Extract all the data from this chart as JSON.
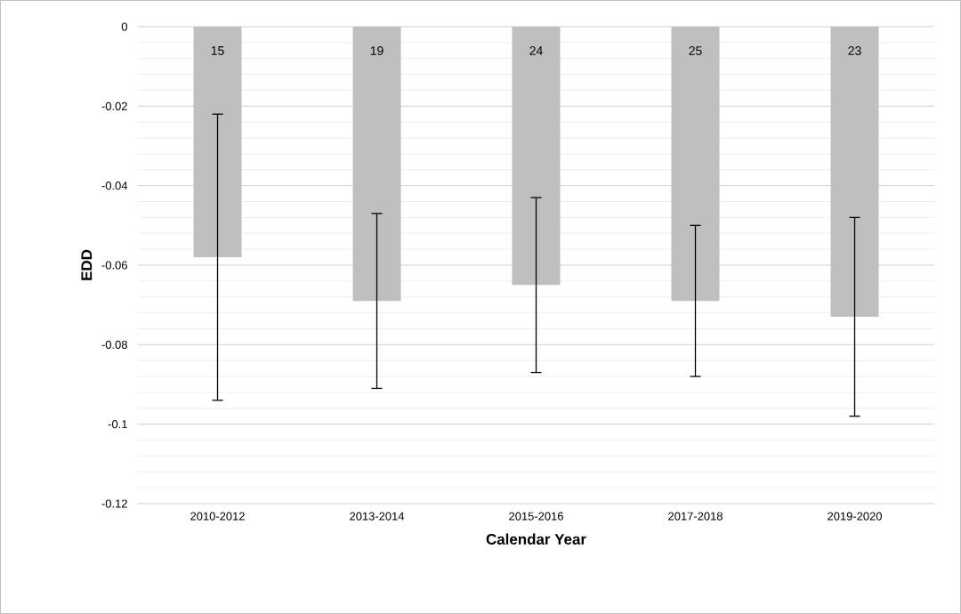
{
  "chart_data": {
    "type": "bar",
    "xlabel": "Calendar Year",
    "ylabel": "EDD",
    "categories": [
      "2010-2012",
      "2013-2014",
      "2015-2016",
      "2017-2018",
      "2019-2020"
    ],
    "values": [
      -0.058,
      -0.069,
      -0.065,
      -0.069,
      -0.073
    ],
    "errors": [
      [
        -0.094,
        -0.022
      ],
      [
        -0.091,
        -0.047
      ],
      [
        -0.087,
        -0.043
      ],
      [
        -0.088,
        -0.05
      ],
      [
        -0.098,
        -0.048
      ]
    ],
    "annotations": [
      "15",
      "19",
      "24",
      "25",
      "23"
    ],
    "color": "#bfbfbf",
    "ylim": [
      -0.12,
      0
    ],
    "yticks": [
      0,
      -0.02,
      -0.04,
      -0.06,
      -0.08,
      -0.1,
      -0.12
    ],
    "grid": "y"
  }
}
